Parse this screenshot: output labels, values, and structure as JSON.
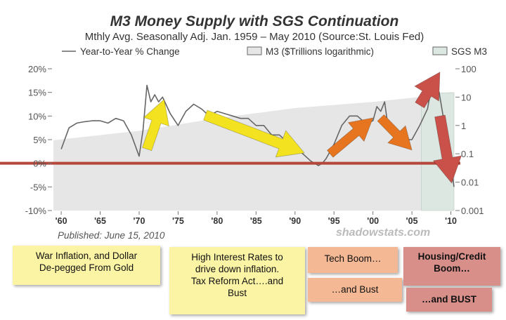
{
  "colors": {
    "line": "#666666",
    "m3_fill": "#e6e6e6",
    "sgs_fill": "#dbe7e0",
    "zero_line": "#b5473b",
    "arrow_yellow": "#f3e21f",
    "arrow_orange": "#e77520",
    "arrow_red": "#c9514a",
    "note_yellow": "#fbf4a4",
    "note_peach": "#f4b894",
    "note_pink": "#d88f8a"
  },
  "chart_data": {
    "type": "line",
    "title": "M3 Money Supply with SGS Continuation",
    "subtitle": "Mthly Avg. Seasonally Adj. Jan. 1959 – May 2010  (Source:St. Louis Fed)",
    "legend": [
      {
        "label": "Year-to-Year % Change",
        "kind": "line"
      },
      {
        "label": "M3 ($Trillions logarithmic)",
        "kind": "box"
      },
      {
        "label": "SGS M3",
        "kind": "box"
      }
    ],
    "legend_position": "top",
    "published": "Published: June 15, 2010",
    "watermark": "shadowstats.com",
    "x_ticks": [
      "'60",
      "'65",
      "'70",
      "'75",
      "'80",
      "'85",
      "'90",
      "'95",
      "'00",
      "'05",
      "'10"
    ],
    "y_left_ticks": [
      "20%",
      "15%",
      "10%",
      "5%",
      "0%",
      "-5%",
      "-10%"
    ],
    "y_right_ticks": [
      "100",
      "10",
      "1",
      "0.1",
      "0.01",
      "0.001"
    ],
    "x_range": [
      1959,
      2010.4
    ],
    "y_left_range": [
      -10,
      20
    ],
    "y_right_range": [
      0.001,
      100
    ],
    "y_right_scale": "log",
    "grid": false,
    "series": [
      {
        "name": "Year-to-Year % Change",
        "x": [
          1960,
          1961,
          1962,
          1963,
          1964,
          1965,
          1966,
          1967,
          1968,
          1969,
          1970,
          1970.5,
          1971,
          1971.5,
          1972,
          1972.5,
          1973,
          1974,
          1975,
          1976,
          1977,
          1978,
          1979,
          1980,
          1981,
          1982,
          1983,
          1984,
          1985,
          1986,
          1987,
          1988,
          1989,
          1990,
          1991,
          1992,
          1993,
          1993.5,
          1994,
          1995,
          1996,
          1997,
          1998,
          1999,
          2000,
          2000.5,
          2001,
          2001.5,
          2002,
          2003,
          2004,
          2005,
          2006,
          2007,
          2007.5,
          2008,
          2008.5,
          2009,
          2009.5,
          2010,
          2010.4
        ],
        "y": [
          3,
          7.5,
          8.5,
          8.8,
          9,
          9,
          8.5,
          9.5,
          9,
          6,
          1.5,
          7,
          16.5,
          13,
          14.5,
          13,
          14,
          10.5,
          8,
          11,
          12.5,
          11.5,
          10,
          11,
          10.5,
          10,
          9.5,
          9.5,
          8,
          8,
          6,
          6,
          4.5,
          3.5,
          2,
          0.5,
          -0.5,
          0,
          1,
          4,
          8,
          10,
          10,
          8.5,
          9,
          12,
          11,
          13,
          7,
          5,
          5,
          5,
          8,
          11.5,
          16,
          17,
          15,
          10,
          6,
          0,
          -5
        ]
      },
      {
        "name": "M3 ($Trillions logarithmic)",
        "x": [
          1959,
          1970,
          1980,
          1990,
          2000,
          2006,
          2006.2
        ],
        "y": [
          0.3,
          0.65,
          1.8,
          4.1,
          6.8,
          10.2,
          10.2
        ]
      },
      {
        "name": "SGS M3",
        "x": [
          2006.2,
          2008,
          2010.4
        ],
        "y": [
          10.3,
          14,
          14.5
        ]
      }
    ]
  },
  "annotations": [
    {
      "text": "War Inflation, and Dollar De-pegged From Gold",
      "lines": [
        "War Inflation, and Dollar",
        "De-pegged From Gold"
      ]
    },
    {
      "text": "High Interest Rates to drive down inflation. Tax Reform Act….and Bust",
      "lines": [
        "High Interest Rates to",
        "drive down inflation.",
        "Tax Reform Act….and",
        "Bust"
      ]
    },
    {
      "text": "Tech Boom…",
      "lines": [
        "Tech Boom…"
      ]
    },
    {
      "text": "…and Bust",
      "lines": [
        "…and Bust"
      ]
    },
    {
      "text": "Housing/Credit Boom…",
      "lines": [
        "Housing/Credit",
        "Boom…"
      ]
    },
    {
      "text": "…and BUST",
      "lines": [
        "…and BUST"
      ]
    }
  ]
}
